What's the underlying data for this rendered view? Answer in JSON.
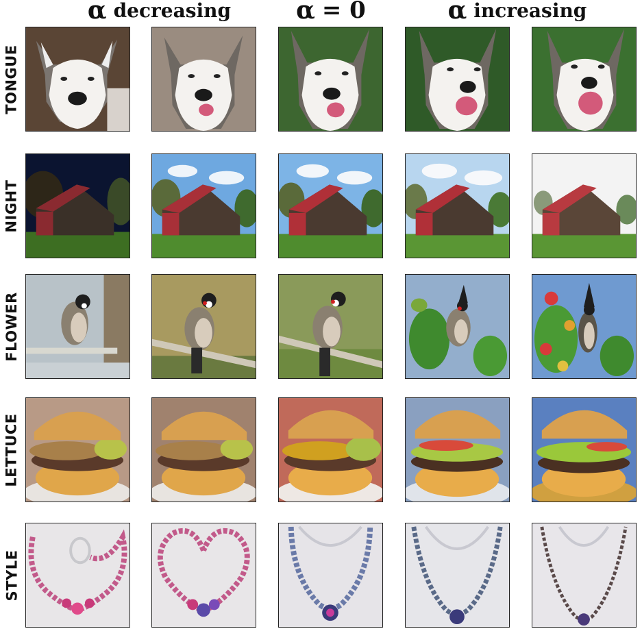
{
  "headers": {
    "decreasing": {
      "symbol": "α",
      "text": "decreasing"
    },
    "zero": {
      "symbol": "α",
      "text": "= 0"
    },
    "increasing": {
      "symbol": "α",
      "text": "increasing"
    }
  },
  "rows": [
    {
      "label": "TONGUE",
      "subject": "husky dog"
    },
    {
      "label": "NIGHT",
      "subject": "red barn"
    },
    {
      "label": "FLOWER",
      "subject": "crested bird"
    },
    {
      "label": "LETTUCE",
      "subject": "cheeseburger"
    },
    {
      "label": "STYLE",
      "subject": "bead necklace"
    }
  ],
  "colors": {
    "background": "#ffffff",
    "text": "#111111",
    "tile_border": "#222222"
  }
}
